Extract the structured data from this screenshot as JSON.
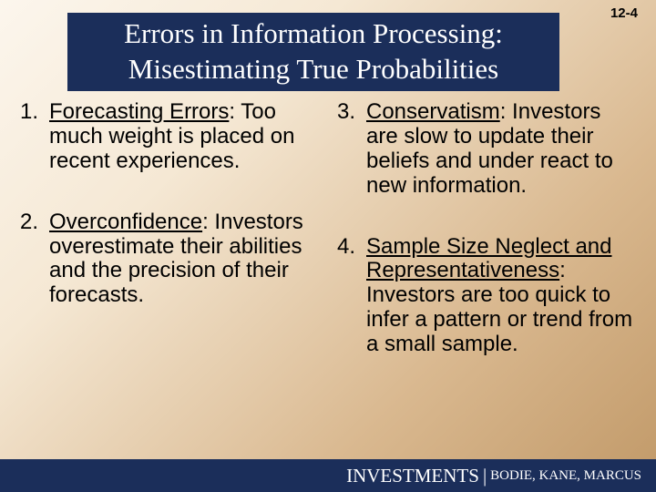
{
  "page_number": "12-4",
  "title": {
    "line1": "Errors in Information Processing:",
    "line2": "Misestimating True Probabilities"
  },
  "colors": {
    "title_bg": "#1b2e5a",
    "title_text": "#ffffff",
    "body_text": "#000000",
    "footer_bg": "#1b2e5a",
    "footer_text": "#ffffff"
  },
  "left_items": [
    {
      "num": "1.",
      "heading": "Forecasting Errors",
      "heading_suffix": ":",
      "body": " Too much weight is placed on recent experiences."
    },
    {
      "num": "2.",
      "heading": "Overconfidence",
      "heading_suffix": ":",
      "body": " Investors overestimate their abilities and the precision of their forecasts."
    }
  ],
  "right_items": [
    {
      "num": "3.",
      "heading": "Conservatism",
      "heading_suffix": ":",
      "body": " Investors are slow to update their beliefs and under react to new information."
    },
    {
      "num": "4.",
      "heading": "Sample Size Neglect and Representativeness",
      "heading_suffix": ":",
      "body": " Investors are too quick to infer a pattern or trend from a small sample."
    }
  ],
  "footer": {
    "brand": "INVESTMENTS",
    "separator": "|",
    "authors": "BODIE, KANE, MARCUS"
  }
}
